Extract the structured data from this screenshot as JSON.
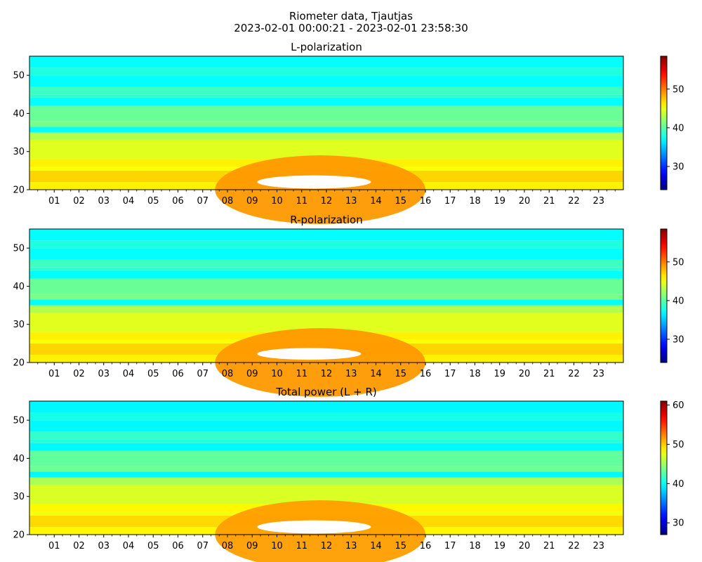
{
  "figure": {
    "title_line1": "Riometer data, Tjautjas",
    "title_line2": "2023-02-01 00:00:21 - 2023-02-01 23:58:30"
  },
  "colormap": "jet",
  "chart_data": [
    {
      "type": "heatmap",
      "title": "L-polarization",
      "x_range_hours": [
        0,
        24
      ],
      "ylim": [
        20,
        55
      ],
      "y_ticks": [
        20,
        30,
        40,
        50
      ],
      "x_tick_labels": [
        "01",
        "02",
        "03",
        "04",
        "05",
        "06",
        "07",
        "08",
        "09",
        "10",
        "11",
        "12",
        "13",
        "14",
        "15",
        "16",
        "17",
        "18",
        "19",
        "20",
        "21",
        "22",
        "23"
      ],
      "colorbar": {
        "range": [
          24,
          58.5
        ],
        "ticks": [
          30,
          40,
          50
        ]
      },
      "bands": [
        {
          "y": [
            20,
            22
          ],
          "value": 46
        },
        {
          "y": [
            22,
            25
          ],
          "value": 47
        },
        {
          "y": [
            25,
            26
          ],
          "value": 45.5
        },
        {
          "y": [
            26,
            28
          ],
          "value": 46
        },
        {
          "y": [
            28,
            33
          ],
          "value": 44.5
        },
        {
          "y": [
            33,
            35
          ],
          "value": 43
        },
        {
          "y": [
            35,
            36.5
          ],
          "value": 37
        },
        {
          "y": [
            36.5,
            38
          ],
          "value": 41
        },
        {
          "y": [
            38,
            42
          ],
          "value": 40.5
        },
        {
          "y": [
            42,
            44
          ],
          "value": 37
        },
        {
          "y": [
            44,
            45
          ],
          "value": 38.5
        },
        {
          "y": [
            45,
            47
          ],
          "value": 39
        },
        {
          "y": [
            47,
            50
          ],
          "value": 37
        },
        {
          "y": [
            50,
            52
          ],
          "value": 38
        },
        {
          "y": [
            52,
            55
          ],
          "value": 37
        }
      ],
      "enhancement": {
        "x_hours": [
          7.5,
          16
        ],
        "y": [
          20,
          29
        ],
        "value": 49,
        "saturated_above": 58.5,
        "saturated_x_hours": [
          9.2,
          13.8
        ],
        "saturated_y": [
          20.5,
          25
        ]
      }
    },
    {
      "type": "heatmap",
      "title": "R-polarization",
      "x_range_hours": [
        0,
        24
      ],
      "ylim": [
        20,
        55
      ],
      "y_ticks": [
        20,
        30,
        40,
        50
      ],
      "x_tick_labels": [
        "01",
        "02",
        "03",
        "04",
        "05",
        "06",
        "07",
        "08",
        "09",
        "10",
        "11",
        "12",
        "13",
        "14",
        "15",
        "16",
        "17",
        "18",
        "19",
        "20",
        "21",
        "22",
        "23"
      ],
      "colorbar": {
        "range": [
          24,
          58.5
        ],
        "ticks": [
          30,
          40,
          50
        ]
      },
      "bands": [
        {
          "y": [
            20,
            22
          ],
          "value": 46
        },
        {
          "y": [
            22,
            25
          ],
          "value": 47
        },
        {
          "y": [
            25,
            26
          ],
          "value": 45.5
        },
        {
          "y": [
            26,
            28
          ],
          "value": 46
        },
        {
          "y": [
            28,
            33
          ],
          "value": 44.5
        },
        {
          "y": [
            33,
            35
          ],
          "value": 43
        },
        {
          "y": [
            35,
            36.5
          ],
          "value": 37
        },
        {
          "y": [
            36.5,
            38
          ],
          "value": 41
        },
        {
          "y": [
            38,
            42
          ],
          "value": 40.5
        },
        {
          "y": [
            42,
            44
          ],
          "value": 37
        },
        {
          "y": [
            44,
            45
          ],
          "value": 38.5
        },
        {
          "y": [
            45,
            47
          ],
          "value": 39
        },
        {
          "y": [
            47,
            50
          ],
          "value": 37
        },
        {
          "y": [
            50,
            52
          ],
          "value": 38
        },
        {
          "y": [
            52,
            55
          ],
          "value": 37
        }
      ],
      "enhancement": {
        "x_hours": [
          7.5,
          16
        ],
        "y": [
          20,
          29
        ],
        "value": 49,
        "saturated_above": 58.5,
        "saturated_x_hours": [
          9.2,
          13.4
        ],
        "saturated_y": [
          21,
          25
        ]
      }
    },
    {
      "type": "heatmap",
      "title": "Total power (L + R)",
      "x_range_hours": [
        0,
        24
      ],
      "ylim": [
        20,
        55
      ],
      "y_ticks": [
        20,
        30,
        40,
        50
      ],
      "x_tick_labels": [
        "01",
        "02",
        "03",
        "04",
        "05",
        "06",
        "07",
        "08",
        "09",
        "10",
        "11",
        "12",
        "13",
        "14",
        "15",
        "16",
        "17",
        "18",
        "19",
        "20",
        "21",
        "22",
        "23"
      ],
      "colorbar": {
        "range": [
          27,
          61
        ],
        "ticks": [
          30,
          40,
          50,
          60
        ]
      },
      "bands": [
        {
          "y": [
            20,
            22
          ],
          "value": 48.5
        },
        {
          "y": [
            22,
            25
          ],
          "value": 49.5
        },
        {
          "y": [
            25,
            26
          ],
          "value": 48
        },
        {
          "y": [
            26,
            28
          ],
          "value": 48.5
        },
        {
          "y": [
            28,
            33
          ],
          "value": 47
        },
        {
          "y": [
            33,
            35
          ],
          "value": 45.5
        },
        {
          "y": [
            35,
            36.5
          ],
          "value": 39.5
        },
        {
          "y": [
            36.5,
            38
          ],
          "value": 43.5
        },
        {
          "y": [
            38,
            42
          ],
          "value": 43
        },
        {
          "y": [
            42,
            44
          ],
          "value": 39.5
        },
        {
          "y": [
            44,
            45
          ],
          "value": 41
        },
        {
          "y": [
            45,
            47
          ],
          "value": 41.5
        },
        {
          "y": [
            47,
            50
          ],
          "value": 39.5
        },
        {
          "y": [
            50,
            52
          ],
          "value": 40.5
        },
        {
          "y": [
            52,
            55
          ],
          "value": 39.5
        }
      ],
      "enhancement": {
        "x_hours": [
          7.5,
          16
        ],
        "y": [
          20,
          29
        ],
        "value": 51.5,
        "saturated_above": 61,
        "saturated_x_hours": [
          9.2,
          13.8
        ],
        "saturated_y": [
          20.5,
          25
        ]
      }
    }
  ]
}
